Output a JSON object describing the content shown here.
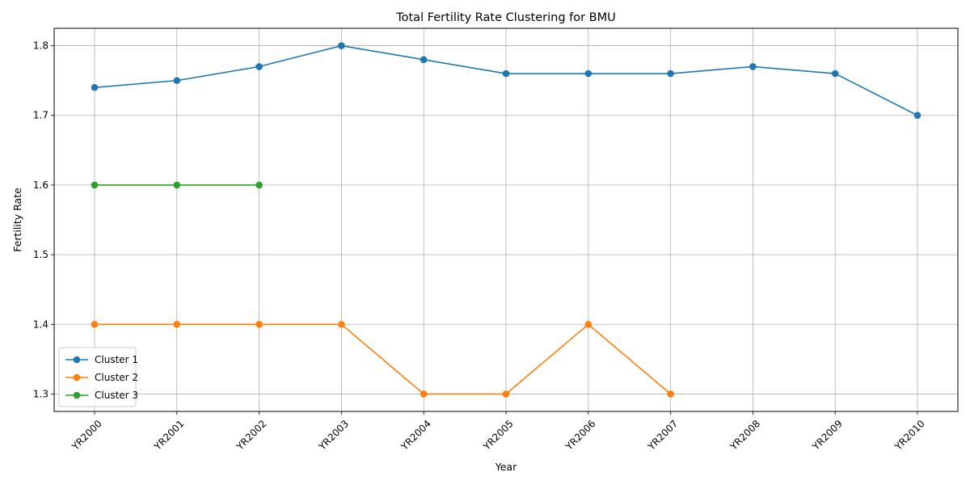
{
  "chart_data": {
    "type": "line",
    "title": "Total Fertility Rate Clustering for BMU",
    "xlabel": "Year",
    "ylabel": "Fertility Rate",
    "categories": [
      "YR2000",
      "YR2001",
      "YR2002",
      "YR2003",
      "YR2004",
      "YR2005",
      "YR2006",
      "YR2007",
      "YR2008",
      "YR2009",
      "YR2010"
    ],
    "ylim": [
      1.275,
      1.825
    ],
    "yticks": [
      1.3,
      1.4,
      1.5,
      1.6,
      1.7,
      1.8
    ],
    "grid": true,
    "legend_position": "lower-left",
    "series": [
      {
        "name": "Cluster 1",
        "color": "#1f77b4",
        "values": [
          1.74,
          1.75,
          1.77,
          1.8,
          1.78,
          1.76,
          1.76,
          1.76,
          1.77,
          1.76,
          1.7
        ]
      },
      {
        "name": "Cluster 2",
        "color": "#ff7f0e",
        "values": [
          1.4,
          1.4,
          1.4,
          1.4,
          1.3,
          1.3,
          1.4,
          1.3,
          null,
          null,
          null
        ]
      },
      {
        "name": "Cluster 3",
        "color": "#2ca02c",
        "values": [
          1.6,
          1.6,
          1.6,
          null,
          null,
          null,
          null,
          null,
          null,
          null,
          null
        ]
      }
    ]
  }
}
